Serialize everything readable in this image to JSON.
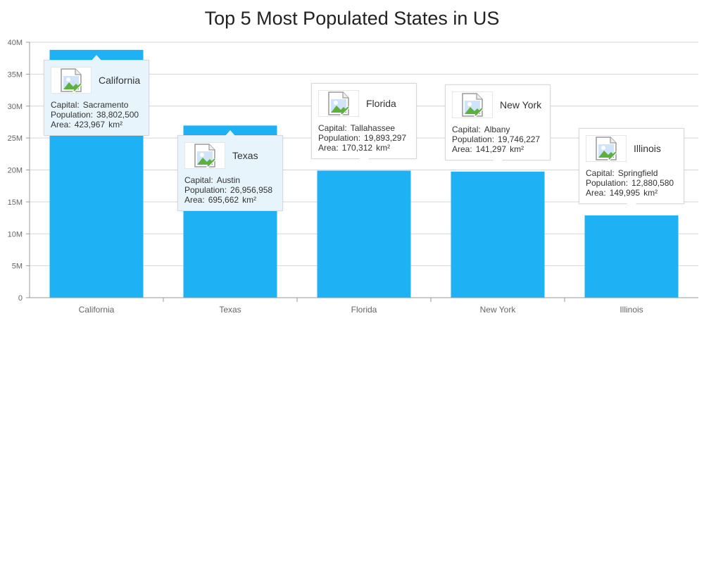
{
  "chart_data": {
    "type": "bar",
    "title": "Top 5 Most Populated States in US",
    "xlabel": "",
    "ylabel": "",
    "categories": [
      "California",
      "Texas",
      "Florida",
      "New York",
      "Illinois"
    ],
    "values": [
      38802500,
      26956958,
      19893297,
      19746227,
      12880580
    ],
    "ylim": [
      0,
      40000000
    ],
    "y_ticks": [
      {
        "value": 0,
        "label": "0"
      },
      {
        "value": 5000000,
        "label": "5M"
      },
      {
        "value": 10000000,
        "label": "10M"
      },
      {
        "value": 15000000,
        "label": "15M"
      },
      {
        "value": 20000000,
        "label": "20M"
      },
      {
        "value": 25000000,
        "label": "25M"
      },
      {
        "value": 30000000,
        "label": "30M"
      },
      {
        "value": 35000000,
        "label": "35M"
      },
      {
        "value": 40000000,
        "label": "40M"
      }
    ],
    "grid": true,
    "bar_color": "#1eb2f5",
    "tooltips": [
      {
        "name": "California",
        "capital_label": "Capital:",
        "capital": "Sacramento",
        "population_label": "Population:",
        "population": "38,802,500",
        "area_label": "Area:",
        "area": "423,967",
        "area_unit": "km²",
        "color": "#e8f4fb"
      },
      {
        "name": "Texas",
        "capital_label": "Capital:",
        "capital": "Austin",
        "population_label": "Population:",
        "population": "26,956,958",
        "area_label": "Area:",
        "area": "695,662",
        "area_unit": "km²",
        "color": "#e8f4fb"
      },
      {
        "name": "Florida",
        "capital_label": "Capital:",
        "capital": "Tallahassee",
        "population_label": "Population:",
        "population": "19,893,297",
        "area_label": "Area:",
        "area": "170,312",
        "area_unit": "km²",
        "color": "#ffffff"
      },
      {
        "name": "New York",
        "capital_label": "Capital:",
        "capital": "Albany",
        "population_label": "Population:",
        "population": "19,746,227",
        "area_label": "Area:",
        "area": "141,297",
        "area_unit": "km²",
        "color": "#ffffff"
      },
      {
        "name": "Illinois",
        "capital_label": "Capital:",
        "capital": "Springfield",
        "population_label": "Population:",
        "population": "12,880,580",
        "area_label": "Area:",
        "area": "149,995",
        "area_unit": "km²",
        "color": "#ffffff"
      }
    ]
  }
}
